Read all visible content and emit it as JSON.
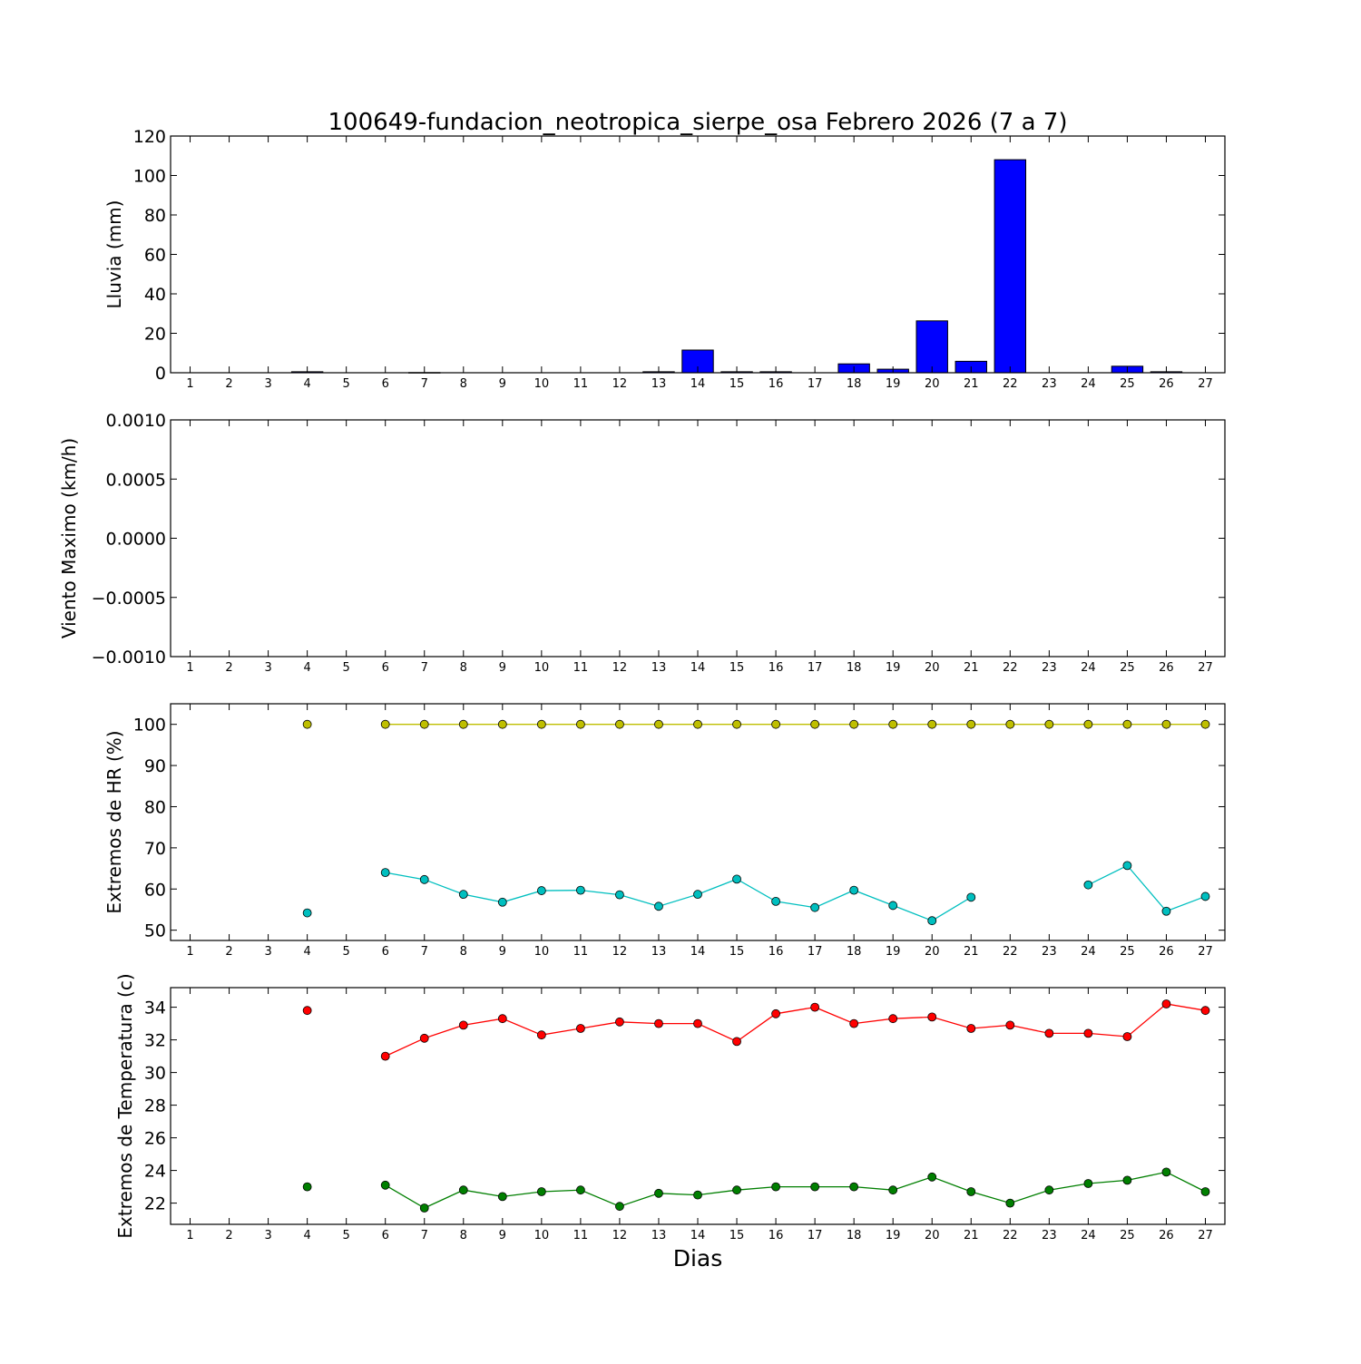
{
  "figure_title": "100649-fundacion_neotropica_sierpe_osa Febrero 2026  (7 a 7)",
  "x_axis_label": "Dias",
  "chart_data": [
    {
      "type": "bar",
      "title": "100649-fundacion_neotropica_sierpe_osa Febrero 2026  (7 a 7)",
      "ylabel": "Lluvia (mm)",
      "ylim": [
        0,
        120
      ],
      "yticks": [
        0,
        20,
        40,
        60,
        80,
        100,
        120
      ],
      "ytick_labels": [
        "0",
        "20",
        "40",
        "60",
        "80",
        "100",
        "120"
      ],
      "x": [
        1,
        2,
        3,
        4,
        5,
        6,
        7,
        8,
        9,
        10,
        11,
        12,
        13,
        14,
        15,
        16,
        17,
        18,
        19,
        20,
        21,
        22,
        23,
        24,
        25,
        26,
        27
      ],
      "values": [
        0,
        0,
        0,
        0.5,
        0,
        0,
        0.1,
        0,
        0,
        0,
        0,
        0,
        0.5,
        11.5,
        0.5,
        0.5,
        0,
        4.5,
        1.8,
        26.3,
        5.8,
        108,
        0,
        0,
        3.3,
        0.5,
        0
      ],
      "colors": {
        "bar": "#0000ff"
      },
      "grid": false
    },
    {
      "type": "line",
      "ylabel": "Viento Maximo (km/h)",
      "ylim": [
        -0.001,
        0.001
      ],
      "yticks": [
        -0.001,
        -0.0005,
        0,
        0.0005,
        0.001
      ],
      "ytick_labels": [
        "−0.0010",
        "−0.0005",
        "0.0000",
        "0.0005",
        "0.0010"
      ],
      "x": [
        1,
        2,
        3,
        4,
        5,
        6,
        7,
        8,
        9,
        10,
        11,
        12,
        13,
        14,
        15,
        16,
        17,
        18,
        19,
        20,
        21,
        22,
        23,
        24,
        25,
        26,
        27
      ],
      "series": [],
      "grid": false
    },
    {
      "type": "line",
      "ylabel": "Extremos de HR (%)",
      "ylim": [
        47.5,
        105
      ],
      "yticks": [
        50,
        60,
        70,
        80,
        90,
        100
      ],
      "ytick_labels": [
        "50",
        "60",
        "70",
        "80",
        "90",
        "100"
      ],
      "x": [
        1,
        2,
        3,
        4,
        5,
        6,
        7,
        8,
        9,
        10,
        11,
        12,
        13,
        14,
        15,
        16,
        17,
        18,
        19,
        20,
        21,
        22,
        23,
        24,
        25,
        26,
        27
      ],
      "series": [
        {
          "color": "#bfbf00",
          "values": [
            null,
            null,
            null,
            100,
            null,
            100,
            100,
            100,
            100,
            100,
            100,
            100,
            100,
            100,
            100,
            100,
            100,
            100,
            100,
            100,
            100,
            100,
            100,
            100,
            100,
            100,
            100
          ]
        },
        {
          "color": "#00bfbf",
          "values": [
            null,
            null,
            null,
            54.2,
            null,
            64,
            62.3,
            58.7,
            56.8,
            59.6,
            59.7,
            58.6,
            55.8,
            58.7,
            62.4,
            57,
            55.5,
            59.7,
            56,
            52.3,
            58,
            null,
            null,
            61,
            65.7,
            54.6,
            58.2
          ]
        }
      ],
      "grid": false
    },
    {
      "type": "line",
      "ylabel": "Extremos de Temperatura (c)",
      "ylim": [
        20.7,
        35.2
      ],
      "yticks": [
        22,
        24,
        26,
        28,
        30,
        32,
        34
      ],
      "ytick_labels": [
        "22",
        "24",
        "26",
        "28",
        "30",
        "32",
        "34"
      ],
      "x": [
        1,
        2,
        3,
        4,
        5,
        6,
        7,
        8,
        9,
        10,
        11,
        12,
        13,
        14,
        15,
        16,
        17,
        18,
        19,
        20,
        21,
        22,
        23,
        24,
        25,
        26,
        27
      ],
      "xlabel": "Dias",
      "series": [
        {
          "color": "#ff0000",
          "values": [
            null,
            null,
            null,
            33.8,
            null,
            31,
            32.1,
            32.9,
            33.3,
            32.3,
            32.7,
            33.1,
            33,
            33,
            31.9,
            33.6,
            34,
            33,
            33.3,
            33.4,
            32.7,
            32.9,
            32.4,
            32.4,
            32.2,
            34.2,
            33.8
          ]
        },
        {
          "color": "#007f00",
          "values": [
            null,
            null,
            null,
            23,
            null,
            23.1,
            21.7,
            22.8,
            22.4,
            22.7,
            22.8,
            21.8,
            22.6,
            22.5,
            22.8,
            23,
            23,
            23,
            22.8,
            23.6,
            22.7,
            22,
            22.8,
            23.2,
            23.4,
            23.9,
            22.7
          ]
        }
      ],
      "grid": false
    }
  ]
}
